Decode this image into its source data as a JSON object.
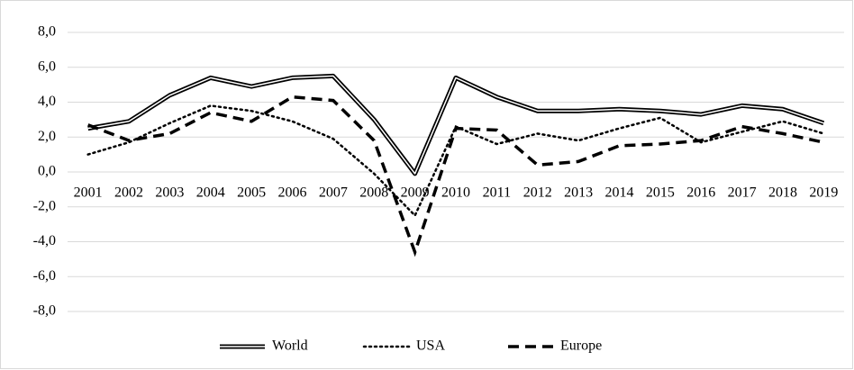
{
  "chart_data": {
    "type": "line",
    "categories": [
      "2001",
      "2002",
      "2003",
      "2004",
      "2005",
      "2006",
      "2007",
      "2008",
      "2009",
      "2010",
      "2011",
      "2012",
      "2013",
      "2014",
      "2015",
      "2016",
      "2017",
      "2018",
      "2019"
    ],
    "series": [
      {
        "name": "World",
        "color": "#000000",
        "style": "double",
        "values": [
          2.5,
          2.9,
          4.4,
          5.4,
          4.9,
          5.4,
          5.5,
          3.0,
          -0.1,
          5.4,
          4.3,
          3.5,
          3.5,
          3.6,
          3.5,
          3.3,
          3.8,
          3.6,
          2.8
        ]
      },
      {
        "name": "USA",
        "color": "#000000",
        "style": "dotted",
        "values": [
          1.0,
          1.7,
          2.8,
          3.8,
          3.5,
          2.9,
          1.9,
          -0.1,
          -2.5,
          2.6,
          1.6,
          2.2,
          1.8,
          2.5,
          3.1,
          1.7,
          2.3,
          2.9,
          2.2
        ]
      },
      {
        "name": "Europe",
        "color": "#000000",
        "style": "dashed",
        "values": [
          2.7,
          1.8,
          2.2,
          3.4,
          2.9,
          4.3,
          4.1,
          1.8,
          -4.6,
          2.5,
          2.4,
          0.4,
          0.6,
          1.5,
          1.6,
          1.8,
          2.6,
          2.2,
          1.7
        ]
      }
    ],
    "ylim": [
      -8,
      8
    ],
    "yticks": [
      {
        "value": -8,
        "label": "-8,0"
      },
      {
        "value": -6,
        "label": "-6,0"
      },
      {
        "value": -4,
        "label": "-4,0"
      },
      {
        "value": -2,
        "label": "-2,0"
      },
      {
        "value": 0,
        "label": "0,0"
      },
      {
        "value": 2,
        "label": "2,0"
      },
      {
        "value": 4,
        "label": "4,0"
      },
      {
        "value": 6,
        "label": "6,0"
      },
      {
        "value": 8,
        "label": "8,0"
      }
    ],
    "grid": true,
    "legend": "bottom"
  }
}
